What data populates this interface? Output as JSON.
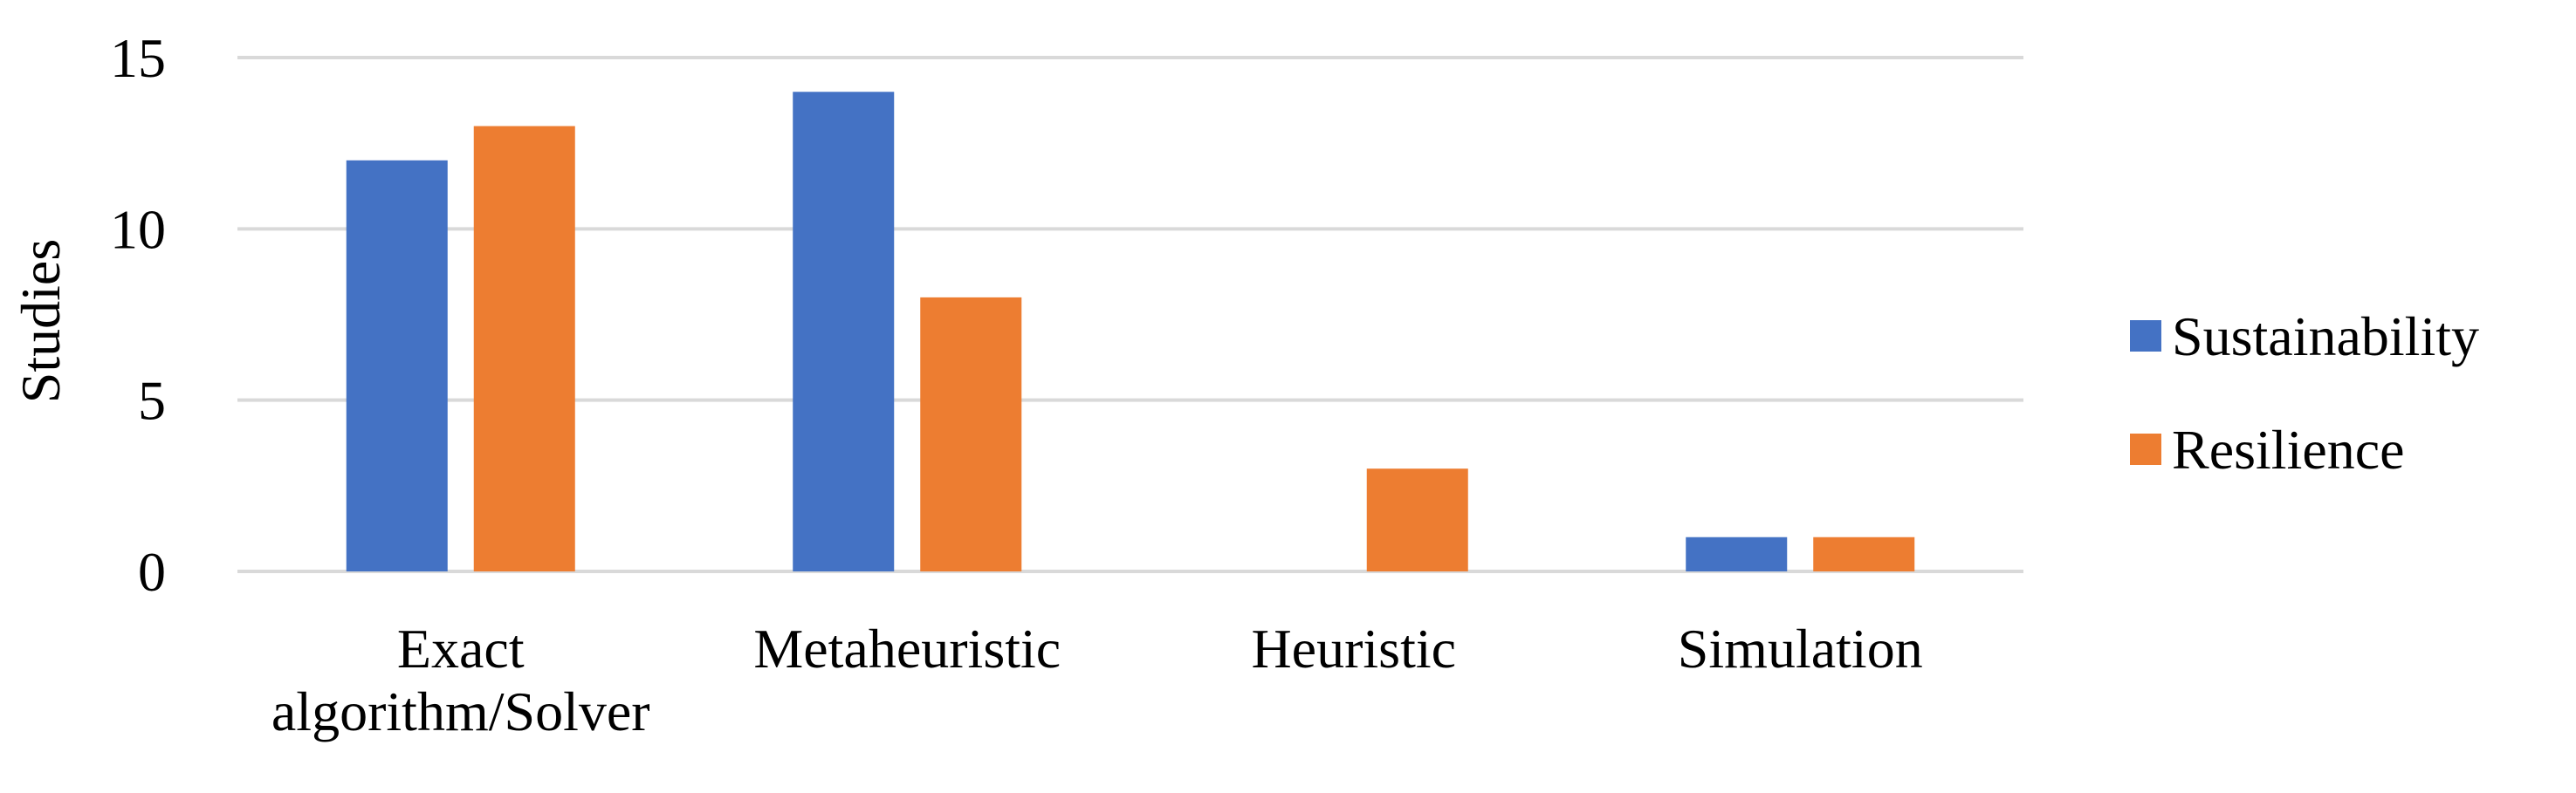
{
  "chart_data": {
    "type": "bar",
    "categories": [
      [
        "Exact",
        "algorithm/Solver"
      ],
      [
        "Metaheuristic"
      ],
      [
        "Heuristic"
      ],
      [
        "Simulation"
      ]
    ],
    "series": [
      {
        "name": "Sustainability",
        "color": "#4472C4",
        "values": [
          12,
          14,
          0,
          1
        ]
      },
      {
        "name": "Resilience",
        "color": "#ED7D31",
        "values": [
          13,
          8,
          3,
          1
        ]
      }
    ],
    "title": "",
    "xlabel": "",
    "ylabel": "Studies",
    "ylim": [
      0,
      15
    ],
    "yticks": [
      0,
      5,
      10,
      15
    ],
    "grid": true,
    "legend": "right"
  }
}
